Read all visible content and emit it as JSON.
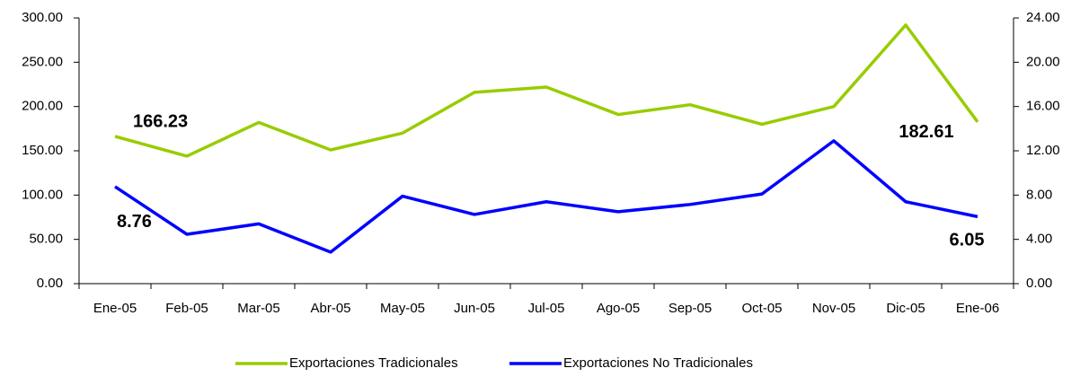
{
  "chart_data": {
    "type": "line",
    "categories": [
      "Ene-05",
      "Feb-05",
      "Mar-05",
      "Abr-05",
      "May-05",
      "Jun-05",
      "Jul-05",
      "Ago-05",
      "Sep-05",
      "Oct-05",
      "Nov-05",
      "Dic-05",
      "Ene-06"
    ],
    "series": [
      {
        "name": "Exportaciones Tradicionales",
        "color": "#99cc00",
        "values": [
          166.23,
          144,
          182,
          151,
          170,
          216,
          222,
          191,
          202,
          180,
          200,
          292,
          182.61
        ],
        "value_labels": [
          "166.23",
          null,
          null,
          null,
          null,
          null,
          null,
          null,
          null,
          null,
          null,
          null,
          "182.61"
        ]
      },
      {
        "name": "Exportaciones No Tradicionales",
        "color": "#0000ff",
        "axis": "y2",
        "values": [
          8.76,
          4.46,
          5.4,
          2.85,
          7.9,
          6.25,
          7.4,
          6.5,
          7.15,
          8.1,
          12.9,
          7.4,
          6.05
        ],
        "value_labels": [
          "8.76",
          null,
          null,
          null,
          null,
          null,
          null,
          null,
          null,
          null,
          null,
          null,
          "6.05"
        ]
      }
    ],
    "ylim": [
      0,
      300
    ],
    "yticks": [
      {
        "value": 0,
        "label": "0.00"
      },
      {
        "value": 50,
        "label": "50.00"
      },
      {
        "value": 100,
        "label": "100.00"
      },
      {
        "value": 150,
        "label": "150.00"
      },
      {
        "value": 200,
        "label": "200.00"
      },
      {
        "value": 250,
        "label": "250.00"
      },
      {
        "value": 300,
        "label": "300.00"
      }
    ],
    "y2lim": [
      0,
      24
    ],
    "y2ticks": [
      {
        "value": 0,
        "label": "0.00"
      },
      {
        "value": 4,
        "label": "4.00"
      },
      {
        "value": 8,
        "label": "8.00"
      },
      {
        "value": 12,
        "label": "12.00"
      },
      {
        "value": 16,
        "label": "16.00"
      },
      {
        "value": 20,
        "label": "20.00"
      },
      {
        "value": 24,
        "label": "24.00"
      }
    ],
    "legend": "bottom"
  }
}
